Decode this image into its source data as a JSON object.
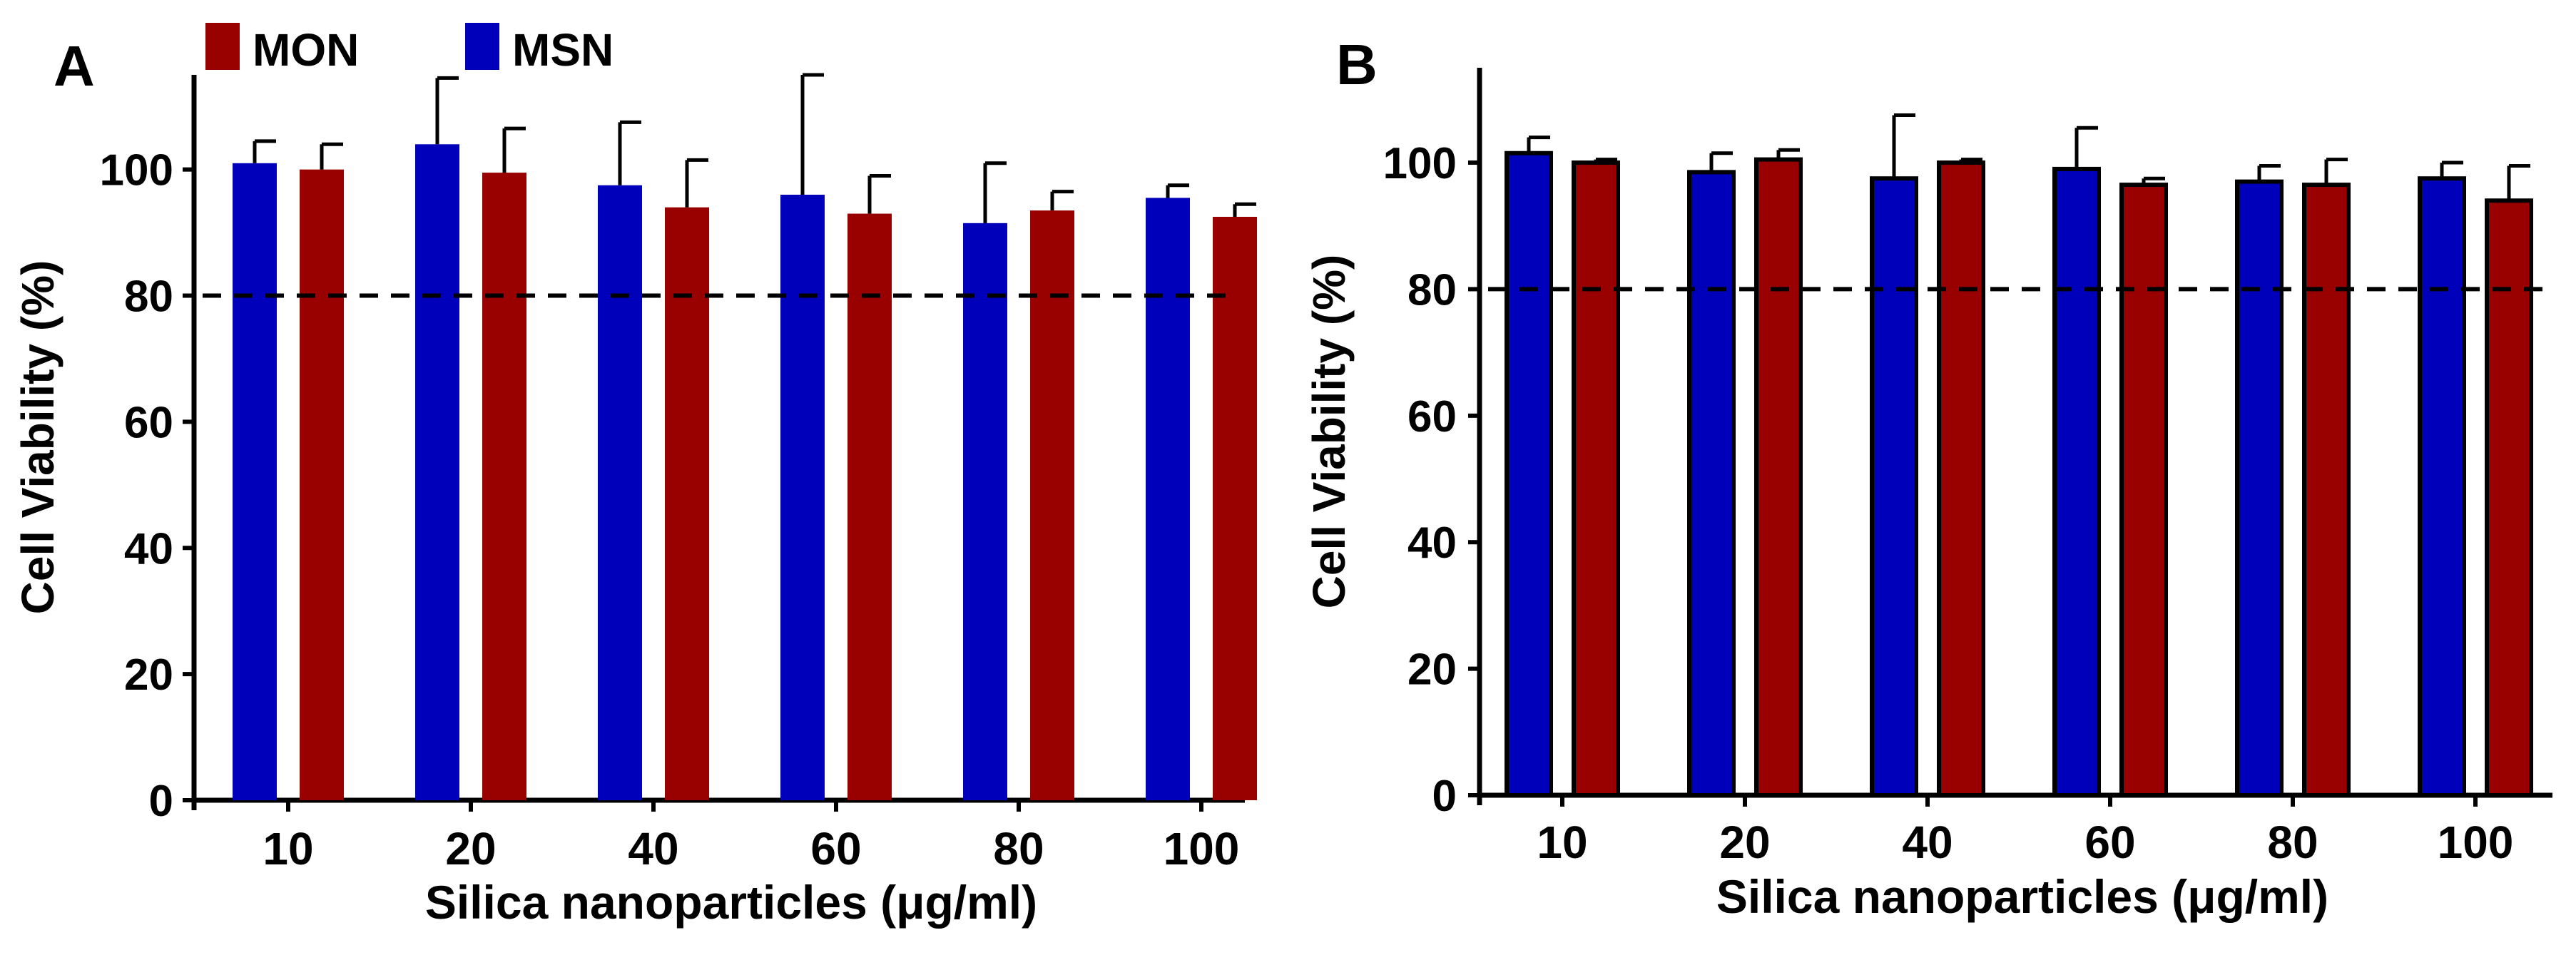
{
  "figure": {
    "legend": [
      {
        "label": "MON",
        "color": "#990000"
      },
      {
        "label": "MSN",
        "color": "#0000BB"
      }
    ]
  },
  "chart_data": [
    {
      "type": "bar",
      "panel_label": "A",
      "title": "",
      "xlabel": "Silica nanoparticles (μg/ml)",
      "ylabel": "Cell Viability (%)",
      "ylim": [
        0,
        115
      ],
      "yticks": [
        "0",
        "20",
        "40",
        "60",
        "80",
        "100"
      ],
      "categories": [
        "10",
        "20",
        "40",
        "60",
        "80",
        "100"
      ],
      "reference_line": 80,
      "bar_outline": false,
      "series": [
        {
          "name": "MSN",
          "color": "#0000BB",
          "values": [
            101,
            104,
            97.5,
            96,
            91.5,
            95.5
          ],
          "errors": [
            3.5,
            10.5,
            10,
            19,
            9.5,
            2
          ]
        },
        {
          "name": "MON",
          "color": "#990000",
          "values": [
            100,
            99.5,
            94,
            93,
            93.5,
            92.5
          ],
          "errors": [
            4,
            7,
            7.5,
            6,
            3,
            2
          ]
        }
      ]
    },
    {
      "type": "bar",
      "panel_label": "B",
      "title": "",
      "xlabel": "Silica nanoparticles (μg/ml)",
      "ylabel": "Cell Viability (%)",
      "ylim": [
        0,
        115
      ],
      "yticks": [
        "0",
        "20",
        "40",
        "60",
        "80",
        "100"
      ],
      "categories": [
        "10",
        "20",
        "40",
        "60",
        "80",
        "100"
      ],
      "reference_line": 80,
      "bar_outline": true,
      "series": [
        {
          "name": "MSN",
          "color": "#0000BB",
          "values": [
            101.5,
            98.5,
            97.5,
            99,
            97,
            97.5
          ],
          "errors": [
            2.5,
            3,
            10,
            6.5,
            2.5,
            2.5
          ]
        },
        {
          "name": "MON",
          "color": "#990000",
          "values": [
            100,
            100.5,
            100,
            96.5,
            96.5,
            94
          ],
          "errors": [
            0.5,
            1.5,
            0.5,
            1,
            4,
            5.5
          ]
        }
      ]
    }
  ]
}
